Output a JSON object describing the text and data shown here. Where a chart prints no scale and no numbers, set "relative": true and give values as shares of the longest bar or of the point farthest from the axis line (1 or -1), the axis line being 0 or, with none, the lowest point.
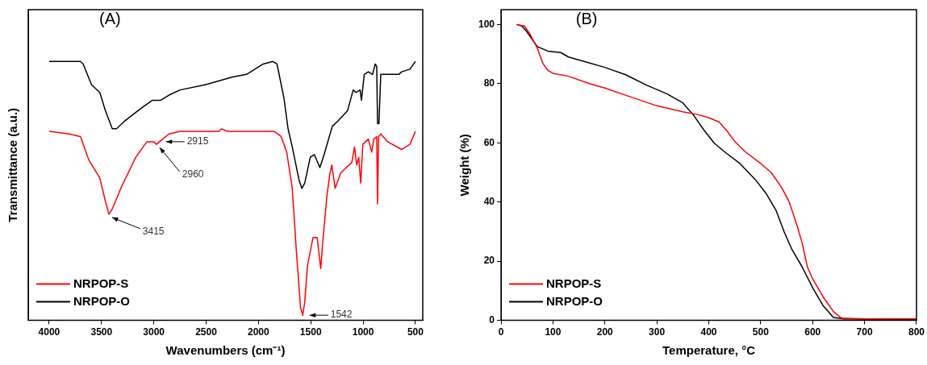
{
  "chart_data": [
    {
      "type": "line",
      "title": "(A)",
      "xlabel": "Wavenumbers (cm⁻¹)",
      "ylabel": "Transmittance (a.u.)",
      "relative": true,
      "tick_labels": "x",
      "xlim": [
        4200,
        430
      ],
      "xticks": [
        4000,
        3500,
        3000,
        2500,
        2000,
        1500,
        1000,
        500
      ],
      "grid": false,
      "legend": "bottom left",
      "marker": "none",
      "line_style": "solid",
      "annotations": [
        {
          "text": "3415",
          "x": 3415,
          "y": 0.41
        },
        {
          "text": "2960",
          "x": 2960,
          "y": 0.68
        },
        {
          "text": "2915",
          "x": 2915,
          "y": 0.69
        },
        {
          "text": "1542",
          "x": 1542,
          "y": 0.02
        }
      ],
      "series": [
        {
          "name": "NRPOP-S",
          "color": "#ff0000",
          "x": [
            4000,
            3807,
            3701,
            3622,
            3516,
            3463,
            3429,
            3397,
            3304,
            3172,
            3066,
            3000,
            2974,
            2947,
            2855,
            2749,
            2378,
            2352,
            2299,
            1849,
            1783,
            1730,
            1677,
            1638,
            1598,
            1577,
            1558,
            1532,
            1479,
            1439,
            1405,
            1386,
            1346,
            1320,
            1299,
            1267,
            1214,
            1161,
            1108,
            1082,
            1061,
            1042,
            1023,
            1003,
            950,
            918,
            897,
            870,
            862,
            852,
            831,
            765,
            632,
            553,
            500
          ],
          "values": [
            0.73,
            0.72,
            0.71,
            0.62,
            0.55,
            0.46,
            0.41,
            0.43,
            0.52,
            0.63,
            0.69,
            0.69,
            0.68,
            0.69,
            0.72,
            0.73,
            0.73,
            0.74,
            0.73,
            0.73,
            0.71,
            0.65,
            0.51,
            0.27,
            0.05,
            0.02,
            0.07,
            0.21,
            0.32,
            0.32,
            0.2,
            0.3,
            0.48,
            0.56,
            0.6,
            0.51,
            0.57,
            0.59,
            0.61,
            0.67,
            0.6,
            0.63,
            0.53,
            0.68,
            0.7,
            0.65,
            0.7,
            0.71,
            0.45,
            0.71,
            0.72,
            0.69,
            0.66,
            0.68,
            0.73
          ]
        },
        {
          "name": "NRPOP-O",
          "color": "#000000",
          "x": [
            4000,
            3701,
            3675,
            3595,
            3516,
            3463,
            3397,
            3357,
            3278,
            3119,
            3013,
            2934,
            2855,
            2749,
            2511,
            2246,
            2114,
            1955,
            1862,
            1823,
            1757,
            1717,
            1677,
            1611,
            1585,
            1558,
            1505,
            1466,
            1413,
            1373,
            1294,
            1241,
            1148,
            1095,
            1069,
            1029,
            1016,
            989,
            950,
            910,
            884,
            870,
            862,
            849,
            831,
            791,
            659,
            632,
            553,
            500
          ],
          "values": [
            1,
            1,
            0.99,
            0.91,
            0.88,
            0.81,
            0.74,
            0.74,
            0.77,
            0.82,
            0.85,
            0.85,
            0.87,
            0.89,
            0.91,
            0.94,
            0.95,
            0.99,
            1,
            0.99,
            0.86,
            0.74,
            0.67,
            0.54,
            0.51,
            0.53,
            0.63,
            0.64,
            0.59,
            0.64,
            0.75,
            0.77,
            0.81,
            0.89,
            0.88,
            0.89,
            0.85,
            0.95,
            0.96,
            0.95,
            0.99,
            0.98,
            0.76,
            0.76,
            0.95,
            0.95,
            0.95,
            0.96,
            0.97,
            1
          ]
        }
      ]
    },
    {
      "type": "line",
      "title": "(B)",
      "xlabel": "Temperature, °C",
      "ylabel": "Weight (%)",
      "xlim": [
        0,
        800
      ],
      "ylim": [
        0,
        105
      ],
      "xticks": [
        0,
        100,
        200,
        300,
        400,
        500,
        600,
        700,
        800
      ],
      "yticks": [
        0,
        20,
        40,
        60,
        80,
        100
      ],
      "grid": false,
      "legend": "bottom left",
      "marker": "none",
      "line_style": "solid",
      "series": [
        {
          "name": "NRPOP-S",
          "color": "#ff0000",
          "x": [
            30,
            45,
            55,
            70,
            80,
            90,
            100,
            130,
            170,
            200,
            250,
            300,
            350,
            380,
            400,
            420,
            435,
            450,
            470,
            500,
            520,
            540,
            555,
            570,
            580,
            590,
            600,
            620,
            640,
            655,
            700,
            800
          ],
          "values": [
            100,
            99.5,
            97,
            92,
            87,
            84.5,
            83.5,
            82.5,
            80,
            78.5,
            75.5,
            72.5,
            70.5,
            69.5,
            68.5,
            67,
            64,
            60.5,
            57,
            53,
            50,
            45,
            40,
            32,
            26,
            18,
            14,
            8,
            3,
            0.8,
            0.5,
            0.5
          ]
        },
        {
          "name": "NRPOP-O",
          "color": "#000000",
          "x": [
            30,
            40,
            50,
            60,
            70,
            90,
            115,
            130,
            160,
            200,
            240,
            280,
            320,
            350,
            370,
            390,
            410,
            430,
            460,
            490,
            510,
            530,
            545,
            560,
            580,
            600,
            620,
            640,
            660,
            800
          ],
          "values": [
            100,
            99.5,
            97.5,
            95,
            92.5,
            91,
            90.5,
            89,
            87.5,
            85.5,
            83,
            79.5,
            76.5,
            73.5,
            69.5,
            64.5,
            60,
            57,
            53,
            47.5,
            43,
            37,
            30,
            24,
            18,
            11,
            5,
            1,
            0.5,
            0.3
          ]
        }
      ]
    }
  ]
}
